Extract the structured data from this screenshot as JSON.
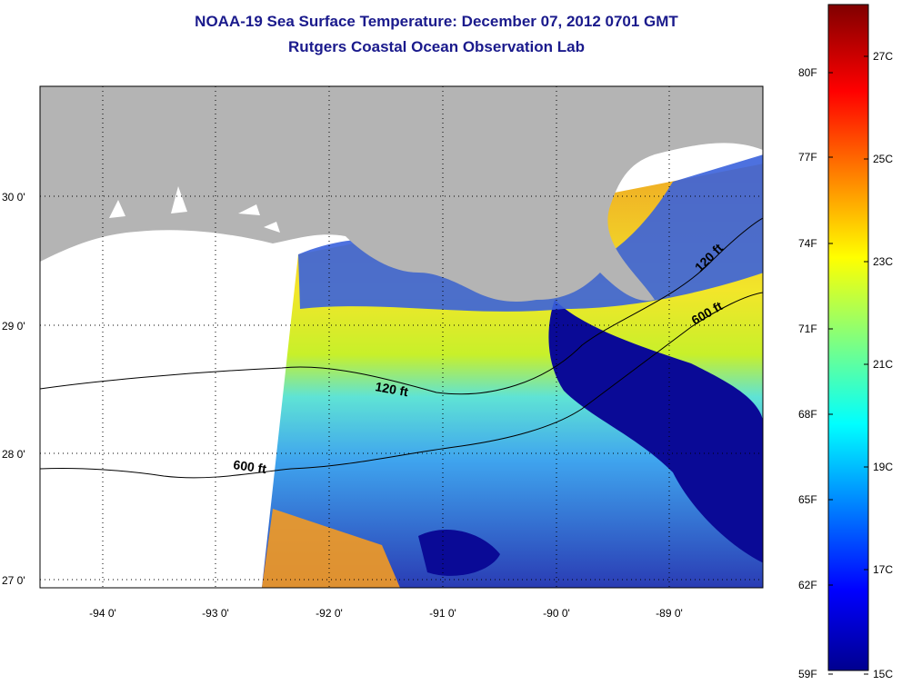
{
  "title": {
    "line1": "NOAA-19 Sea Surface Temperature:  December 07, 2012 0701 GMT",
    "line2": "Rutgers Coastal Ocean Observation Lab"
  },
  "map": {
    "lon_range": [
      -94.5,
      -88.25
    ],
    "lat_range": [
      26.95,
      30.85
    ],
    "lon_ticks": [
      "-94 0'",
      "-93 0'",
      "-92 0'",
      "-91 0'",
      "-90 0'",
      "-89 0'"
    ],
    "lat_ticks": [
      "30 0'",
      "29 0'",
      "28 0'",
      "27 0'"
    ],
    "land_color": "#b4b4b4",
    "contours": [
      {
        "label": "120 ft"
      },
      {
        "label": "600 ft"
      }
    ],
    "contour_labels": [
      "120 ft",
      "600 ft",
      "120 ft",
      "600 ft"
    ]
  },
  "colorbar": {
    "fahrenheit": [
      "80F",
      "77F",
      "74F",
      "71F",
      "68F",
      "65F",
      "62F",
      "59F"
    ],
    "celsius": [
      "27C",
      "25C",
      "23C",
      "21C",
      "19C",
      "17C",
      "15C"
    ],
    "range_c": [
      15,
      28.3
    ],
    "colormap": "jet"
  }
}
